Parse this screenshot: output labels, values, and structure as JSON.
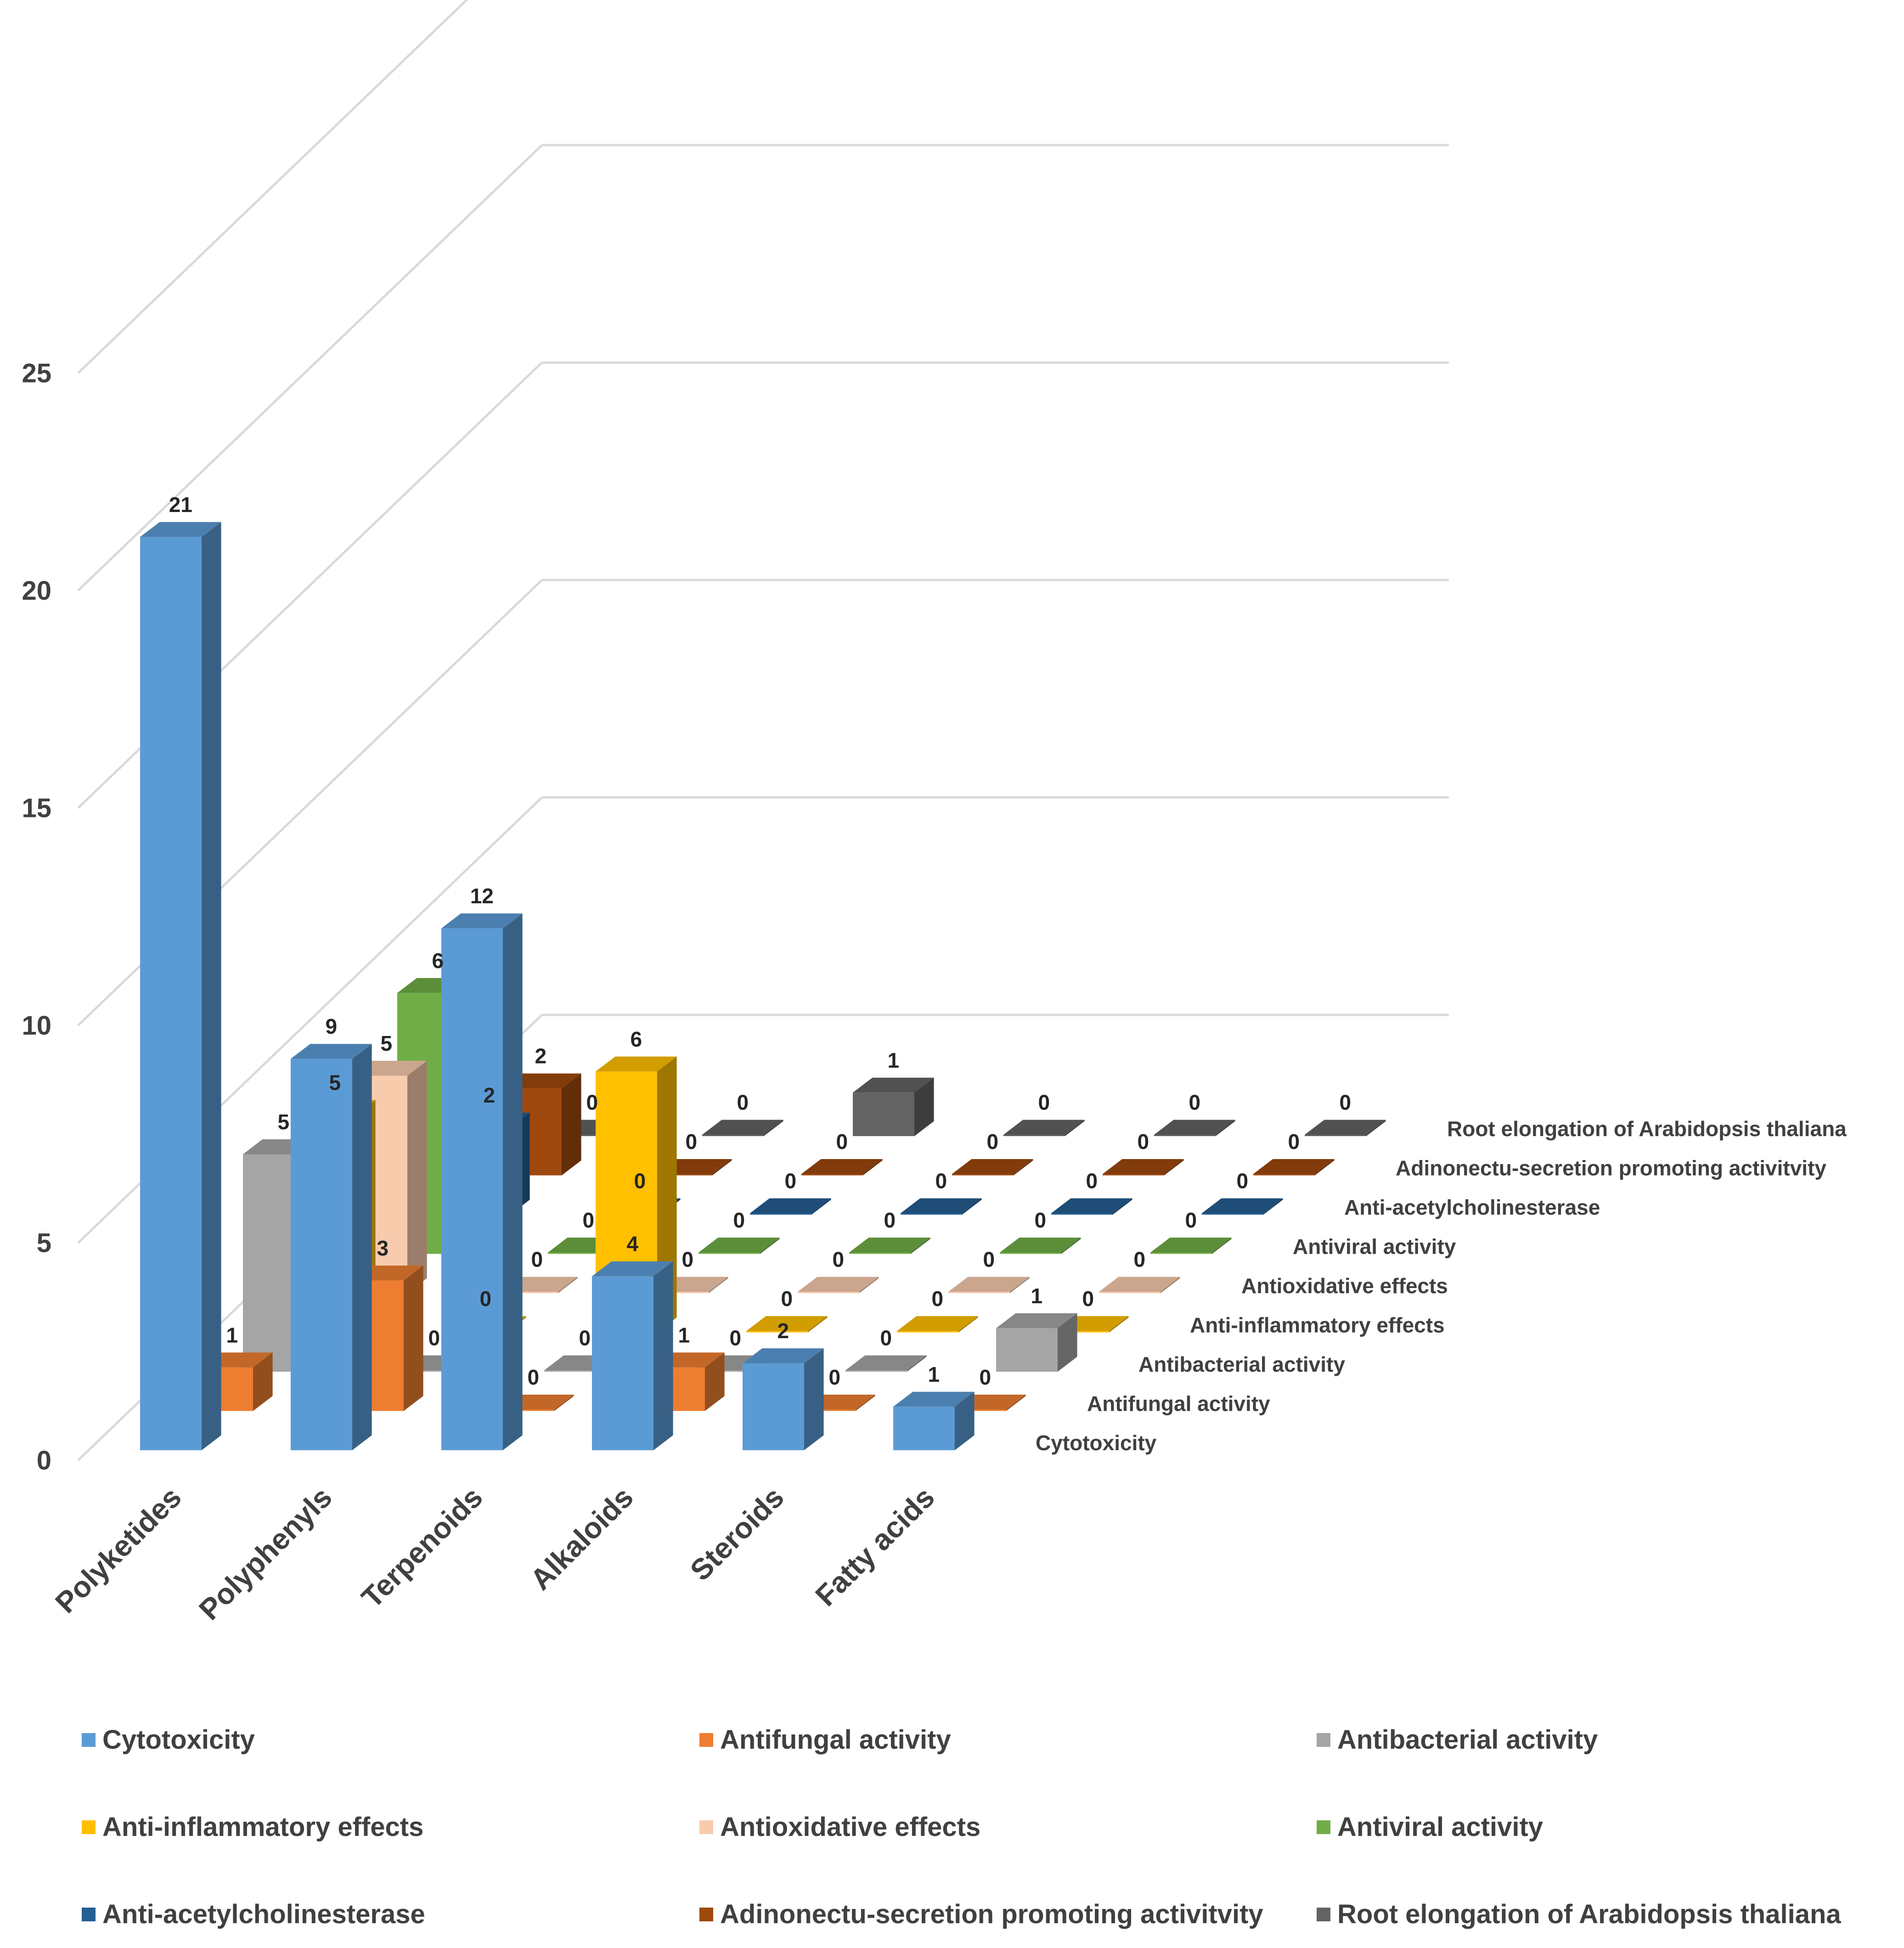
{
  "chart_data": {
    "type": "bar",
    "subtype": "3d-column",
    "title": "",
    "xlabel": "",
    "ylabel": "",
    "ylim": [
      0,
      25
    ],
    "yticks": [
      0,
      5,
      10,
      15,
      20,
      25
    ],
    "ytick_labels": [
      "0",
      "5",
      "10",
      "15",
      "20",
      "25"
    ],
    "grid": true,
    "legend_position": "bottom",
    "categories": [
      "Polyketides",
      "Polyphenyls",
      "Terpenoids",
      "Alkaloids",
      "Steroids",
      "Fatty acids"
    ],
    "series": [
      {
        "name": "Cytotoxicity",
        "color": "#5B9BD5",
        "values": [
          21,
          9,
          12,
          4,
          2,
          1
        ]
      },
      {
        "name": "Antifungal activity",
        "color": "#ED7D31",
        "values": [
          1,
          3,
          0,
          1,
          0,
          0
        ]
      },
      {
        "name": "Antibacterial activity",
        "color": "#A5A5A5",
        "values": [
          5,
          0,
          0,
          0,
          0,
          1
        ]
      },
      {
        "name": "Anti-inflammatory effects",
        "color": "#FFC000",
        "values": [
          5,
          0,
          6,
          0,
          0,
          0
        ]
      },
      {
        "name": "Antioxidative effects",
        "color": "#F8CBAD",
        "values": [
          5,
          0,
          0,
          0,
          0,
          0
        ]
      },
      {
        "name": "Antiviral activity",
        "color": "#70AD47",
        "values": [
          6,
          0,
          0,
          0,
          0,
          0
        ]
      },
      {
        "name": "Anti-acetylcholinesterase",
        "color": "#255E91",
        "values": [
          2,
          0,
          0,
          0,
          0,
          0
        ]
      },
      {
        "name": "Adinonectu-secretion promoting activitvity",
        "color": "#9E480E",
        "values": [
          2,
          0,
          0,
          0,
          0,
          0
        ]
      },
      {
        "name": "Root elongation of Arabidopsis thaliana",
        "color": "#636363",
        "values": [
          0,
          0,
          1,
          0,
          0,
          0
        ]
      }
    ]
  }
}
